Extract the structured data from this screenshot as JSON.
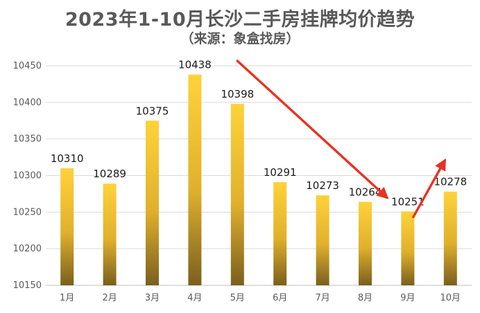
{
  "chart_data": {
    "type": "bar",
    "title": "2023年1-10月长沙二手房挂牌均价趋势",
    "subtitle": "（来源：象盒找房）",
    "categories": [
      "1月",
      "2月",
      "3月",
      "4月",
      "5月",
      "6月",
      "7月",
      "8月",
      "9月",
      "10月"
    ],
    "values": [
      10310,
      10289,
      10375,
      10438,
      10398,
      10291,
      10273,
      10264,
      10251,
      10278
    ],
    "ylim": [
      10150,
      10450
    ],
    "yticks": [
      10150,
      10200,
      10250,
      10300,
      10350,
      10400,
      10450
    ],
    "grid": true,
    "bar_gradient": [
      "#ffd23a",
      "#e0b02c",
      "#7a5f1e"
    ],
    "arrow_color": "#e83222",
    "annotations": [
      {
        "type": "arrow",
        "from_category": "5月",
        "to_category": "9月",
        "direction": "down"
      },
      {
        "type": "arrow",
        "from_category": "9月",
        "to_category": "10月",
        "direction": "up"
      }
    ]
  }
}
